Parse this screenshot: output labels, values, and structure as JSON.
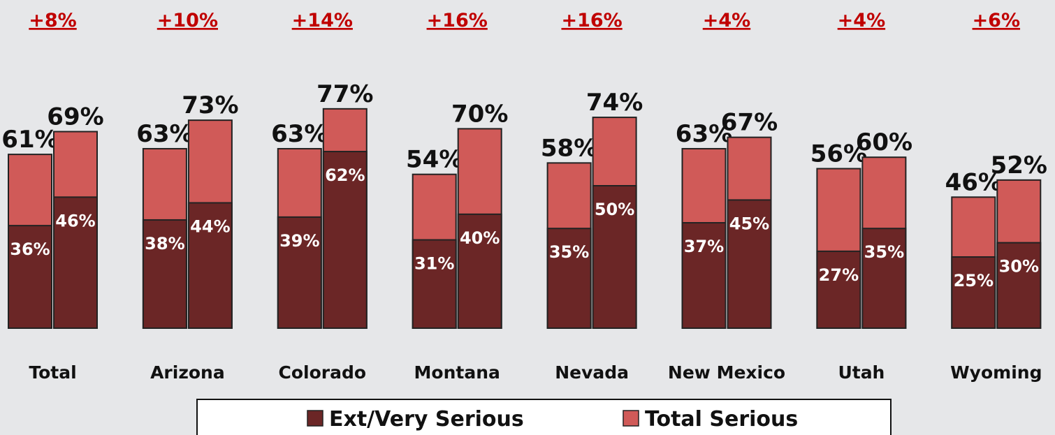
{
  "chart_data": {
    "type": "overlaid-bar",
    "categories": [
      "Total",
      "Arizona",
      "Colorado",
      "Montana",
      "Nevada",
      "New Mexico",
      "Utah",
      "Wyoming"
    ],
    "series": [
      {
        "name": "Ext/Very Serious",
        "color": "#6b2626",
        "values": [
          [
            36,
            46
          ],
          [
            38,
            44
          ],
          [
            39,
            62
          ],
          [
            31,
            40
          ],
          [
            35,
            50
          ],
          [
            37,
            45
          ],
          [
            27,
            35
          ],
          [
            25,
            30
          ]
        ],
        "value_labels": [
          [
            "36%",
            "46%"
          ],
          [
            "38%",
            "44%"
          ],
          [
            "39%",
            "62%"
          ],
          [
            "31%",
            "40%"
          ],
          [
            "35%",
            "50%"
          ],
          [
            "37%",
            "45%"
          ],
          [
            "27%",
            "35%"
          ],
          [
            "25%",
            "30%"
          ]
        ]
      },
      {
        "name": "Total Serious",
        "color": "#d05a58",
        "values": [
          [
            61,
            69
          ],
          [
            63,
            73
          ],
          [
            63,
            77
          ],
          [
            54,
            70
          ],
          [
            58,
            74
          ],
          [
            63,
            67
          ],
          [
            56,
            60
          ],
          [
            46,
            52
          ]
        ],
        "value_labels": [
          [
            "61%",
            "69%"
          ],
          [
            "63%",
            "73%"
          ],
          [
            "63%",
            "77%"
          ],
          [
            "54%",
            "70%"
          ],
          [
            "58%",
            "74%"
          ],
          [
            "63%",
            "67%"
          ],
          [
            "56%",
            "60%"
          ],
          [
            "46%",
            "52%"
          ]
        ]
      }
    ],
    "differences": {
      "values": [
        8,
        10,
        14,
        16,
        16,
        4,
        4,
        6
      ],
      "value_labels": [
        "+8%",
        "+10%",
        "+14%",
        "+16%",
        "+16%",
        "+4%",
        "+4%",
        "+6%"
      ],
      "color": "#c00000"
    },
    "legend": "bottom"
  }
}
